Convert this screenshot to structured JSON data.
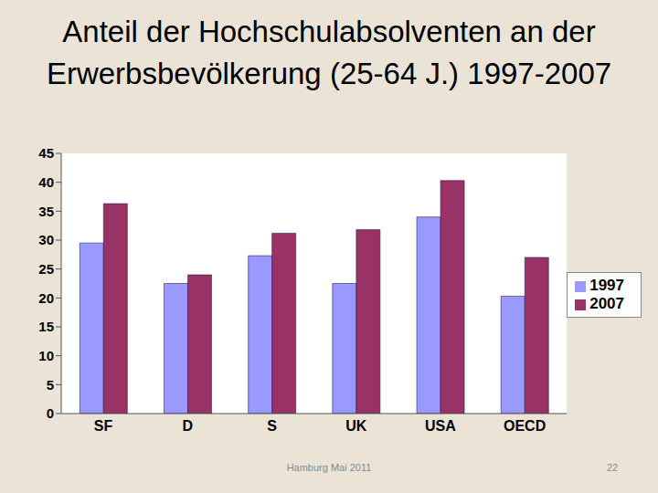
{
  "chart_data": {
    "type": "bar",
    "title": "Anteil der Hochschulabsolventen an der Erwerbsbevölkerung (25-64 J.) 1997-2007",
    "categories": [
      "SF",
      "D",
      "S",
      "UK",
      "USA",
      "OECD"
    ],
    "series": [
      {
        "name": "1997",
        "color": "#9999ff",
        "values": [
          29.5,
          22.5,
          27.3,
          22.5,
          34,
          20.3
        ]
      },
      {
        "name": "2007",
        "color": "#993366",
        "values": [
          36.3,
          24,
          31.2,
          31.8,
          40.3,
          27
        ]
      }
    ],
    "ylim": [
      0,
      45
    ],
    "yticks": [
      0,
      5,
      10,
      15,
      20,
      25,
      30,
      35,
      40,
      45
    ],
    "grid": false,
    "legend": "right"
  },
  "footer": {
    "text": "Hamburg Mai 2011",
    "page": 22
  }
}
